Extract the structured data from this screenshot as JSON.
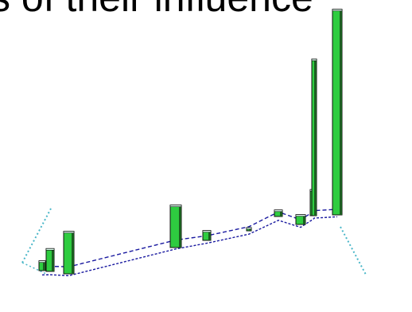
{
  "title": "s of their influence",
  "colors": {
    "bar_fill": "#2ecc40",
    "bar_dark": "#1b5e20",
    "bar_edge": "#111111",
    "line_blue": "#1a1aa0",
    "axis_cyan": "#49b6c8"
  },
  "chart_data": {
    "type": "bar",
    "projection": "3d",
    "title": "s of their influence",
    "grid": false,
    "bars": [
      {
        "index": 1,
        "value": 3
      },
      {
        "index": 2,
        "value": 7
      },
      {
        "index": 3,
        "value": 13
      },
      {
        "index": 4,
        "value": 13
      },
      {
        "index": 5,
        "value": 3
      },
      {
        "index": 6,
        "value": 1
      },
      {
        "index": 7,
        "value": 2
      },
      {
        "index": 8,
        "value": 3
      },
      {
        "index": 9,
        "value": 8
      },
      {
        "index": 10,
        "value": 48
      },
      {
        "index": 11,
        "value": 63
      }
    ],
    "series": [
      {
        "values": [
          2,
          4,
          8,
          9,
          3,
          2,
          3,
          3,
          2,
          4,
          5
        ]
      },
      {
        "values": [
          1,
          3,
          6,
          7,
          4,
          3,
          2,
          4,
          3,
          5,
          6
        ]
      }
    ]
  }
}
